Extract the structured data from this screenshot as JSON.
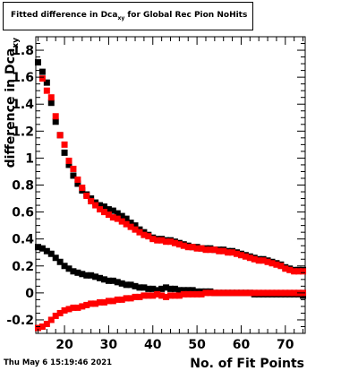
{
  "title": {
    "prefix": "Fitted difference in Dca",
    "subscript": "xy",
    "suffix": " for Global Rec Pion NoHits"
  },
  "timestamp": "Thu May  6 15:19:46 2021",
  "chart_data": {
    "type": "scatter",
    "xlabel": "No. of Fit Points",
    "ylabel": "difference in Dca",
    "ylabel_subscript": "xy",
    "xlim": [
      13.5,
      74.5
    ],
    "ylim": [
      -0.3,
      1.9
    ],
    "x_ticks": [
      20,
      30,
      40,
      50,
      60,
      70
    ],
    "y_ticks": [
      -0.2,
      0,
      0.2,
      0.4,
      0.6,
      0.8,
      1,
      1.2,
      1.4,
      1.6,
      1.8
    ],
    "colors": {
      "black": "#000000",
      "red": "#ff0000"
    },
    "series": [
      {
        "color": "black",
        "marker": "square",
        "points": [
          [
            14,
            1.71
          ],
          [
            15,
            1.64
          ],
          [
            16,
            1.56
          ],
          [
            17,
            1.41
          ],
          [
            18,
            1.27
          ],
          [
            19,
            1.17
          ],
          [
            20,
            1.04
          ],
          [
            21,
            0.95
          ],
          [
            22,
            0.87
          ],
          [
            23,
            0.81
          ],
          [
            24,
            0.76
          ],
          [
            25,
            0.73
          ],
          [
            26,
            0.7
          ],
          [
            27,
            0.67
          ],
          [
            28,
            0.65
          ],
          [
            29,
            0.64
          ],
          [
            30,
            0.62
          ],
          [
            31,
            0.61
          ],
          [
            32,
            0.59
          ],
          [
            33,
            0.57
          ],
          [
            34,
            0.55
          ],
          [
            35,
            0.52
          ],
          [
            36,
            0.5
          ],
          [
            37,
            0.47
          ],
          [
            38,
            0.45
          ],
          [
            39,
            0.43
          ],
          [
            40,
            0.41
          ],
          [
            41,
            0.4
          ],
          [
            42,
            0.4
          ],
          [
            43,
            0.39
          ],
          [
            44,
            0.39
          ],
          [
            45,
            0.38
          ],
          [
            46,
            0.37
          ],
          [
            47,
            0.36
          ],
          [
            48,
            0.35
          ],
          [
            49,
            0.34
          ],
          [
            50,
            0.34
          ],
          [
            51,
            0.33
          ],
          [
            52,
            0.33
          ],
          [
            53,
            0.33
          ],
          [
            54,
            0.32
          ],
          [
            55,
            0.32
          ],
          [
            56,
            0.32
          ],
          [
            57,
            0.31
          ],
          [
            58,
            0.31
          ],
          [
            59,
            0.3
          ],
          [
            60,
            0.29
          ],
          [
            61,
            0.28
          ],
          [
            62,
            0.27
          ],
          [
            63,
            0.26
          ],
          [
            64,
            0.25
          ],
          [
            65,
            0.25
          ],
          [
            66,
            0.24
          ],
          [
            67,
            0.23
          ],
          [
            68,
            0.22
          ],
          [
            69,
            0.21
          ],
          [
            70,
            0.19
          ],
          [
            71,
            0.18
          ],
          [
            72,
            0.17
          ],
          [
            73,
            0.17
          ],
          [
            74,
            0.17
          ]
        ]
      },
      {
        "color": "red",
        "marker": "square",
        "points": [
          [
            15,
            1.59
          ],
          [
            16,
            1.5
          ],
          [
            17,
            1.45
          ],
          [
            18,
            1.31
          ],
          [
            19,
            1.17
          ],
          [
            20,
            1.1
          ],
          [
            21,
            0.98
          ],
          [
            22,
            0.92
          ],
          [
            23,
            0.84
          ],
          [
            24,
            0.78
          ],
          [
            25,
            0.72
          ],
          [
            26,
            0.68
          ],
          [
            27,
            0.65
          ],
          [
            28,
            0.62
          ],
          [
            29,
            0.6
          ],
          [
            30,
            0.58
          ],
          [
            31,
            0.56
          ],
          [
            32,
            0.55
          ],
          [
            33,
            0.53
          ],
          [
            34,
            0.51
          ],
          [
            35,
            0.49
          ],
          [
            36,
            0.47
          ],
          [
            37,
            0.45
          ],
          [
            38,
            0.43
          ],
          [
            39,
            0.42
          ],
          [
            40,
            0.4
          ],
          [
            41,
            0.39
          ],
          [
            42,
            0.39
          ],
          [
            43,
            0.38
          ],
          [
            44,
            0.38
          ],
          [
            45,
            0.37
          ],
          [
            46,
            0.36
          ],
          [
            47,
            0.35
          ],
          [
            48,
            0.34
          ],
          [
            49,
            0.34
          ],
          [
            50,
            0.33
          ],
          [
            51,
            0.33
          ],
          [
            52,
            0.32
          ],
          [
            53,
            0.32
          ],
          [
            54,
            0.32
          ],
          [
            55,
            0.31
          ],
          [
            56,
            0.31
          ],
          [
            57,
            0.3
          ],
          [
            58,
            0.3
          ],
          [
            59,
            0.29
          ],
          [
            60,
            0.28
          ],
          [
            61,
            0.27
          ],
          [
            62,
            0.26
          ],
          [
            63,
            0.25
          ],
          [
            64,
            0.24
          ],
          [
            65,
            0.24
          ],
          [
            66,
            0.23
          ],
          [
            67,
            0.22
          ],
          [
            68,
            0.21
          ],
          [
            69,
            0.2
          ],
          [
            70,
            0.18
          ],
          [
            71,
            0.17
          ],
          [
            72,
            0.16
          ],
          [
            73,
            0.16
          ],
          [
            74,
            0.16
          ]
        ]
      },
      {
        "color": "black",
        "marker": "square",
        "points": [
          [
            14,
            0.34
          ],
          [
            15,
            0.33
          ],
          [
            16,
            0.31
          ],
          [
            17,
            0.29
          ],
          [
            18,
            0.26
          ],
          [
            19,
            0.23
          ],
          [
            20,
            0.2
          ],
          [
            21,
            0.18
          ],
          [
            22,
            0.16
          ],
          [
            23,
            0.15
          ],
          [
            24,
            0.14
          ],
          [
            25,
            0.13
          ],
          [
            26,
            0.13
          ],
          [
            27,
            0.12
          ],
          [
            28,
            0.11
          ],
          [
            29,
            0.1
          ],
          [
            30,
            0.09
          ],
          [
            31,
            0.09
          ],
          [
            32,
            0.08
          ],
          [
            33,
            0.07
          ],
          [
            34,
            0.06
          ],
          [
            35,
            0.06
          ],
          [
            36,
            0.05
          ],
          [
            37,
            0.04
          ],
          [
            38,
            0.04
          ],
          [
            39,
            0.03
          ],
          [
            40,
            0.03
          ],
          [
            41,
            0.02
          ],
          [
            42,
            0.03
          ],
          [
            43,
            0.04
          ],
          [
            44,
            0.03
          ],
          [
            45,
            0.03
          ],
          [
            46,
            0.02
          ],
          [
            47,
            0.02
          ],
          [
            48,
            0.02
          ],
          [
            49,
            0.02
          ],
          [
            50,
            0.01
          ],
          [
            51,
            0.01
          ],
          [
            52,
            0.01
          ],
          [
            53,
            0.01
          ],
          [
            54,
            0.0
          ],
          [
            55,
            0.0
          ],
          [
            56,
            0.0
          ],
          [
            57,
            0.0
          ],
          [
            58,
            0.0
          ],
          [
            59,
            0.0
          ],
          [
            60,
            0.0
          ],
          [
            61,
            0.0
          ],
          [
            62,
            0.0
          ],
          [
            63,
            -0.01
          ],
          [
            64,
            -0.01
          ],
          [
            65,
            -0.01
          ],
          [
            66,
            -0.01
          ],
          [
            67,
            -0.01
          ],
          [
            68,
            -0.01
          ],
          [
            69,
            -0.01
          ],
          [
            70,
            -0.01
          ],
          [
            71,
            -0.01
          ],
          [
            72,
            -0.01
          ],
          [
            73,
            -0.01
          ],
          [
            74,
            -0.02
          ]
        ]
      },
      {
        "color": "red",
        "marker": "square",
        "points": [
          [
            14,
            -0.26
          ],
          [
            15,
            -0.25
          ],
          [
            16,
            -0.23
          ],
          [
            17,
            -0.2
          ],
          [
            18,
            -0.17
          ],
          [
            19,
            -0.15
          ],
          [
            20,
            -0.13
          ],
          [
            21,
            -0.12
          ],
          [
            22,
            -0.11
          ],
          [
            23,
            -0.11
          ],
          [
            24,
            -0.1
          ],
          [
            25,
            -0.09
          ],
          [
            26,
            -0.08
          ],
          [
            27,
            -0.08
          ],
          [
            28,
            -0.07
          ],
          [
            29,
            -0.07
          ],
          [
            30,
            -0.06
          ],
          [
            31,
            -0.06
          ],
          [
            32,
            -0.05
          ],
          [
            33,
            -0.05
          ],
          [
            34,
            -0.04
          ],
          [
            35,
            -0.04
          ],
          [
            36,
            -0.03
          ],
          [
            37,
            -0.03
          ],
          [
            38,
            -0.02
          ],
          [
            39,
            -0.02
          ],
          [
            40,
            -0.02
          ],
          [
            41,
            -0.01
          ],
          [
            42,
            -0.02
          ],
          [
            43,
            -0.03
          ],
          [
            44,
            -0.02
          ],
          [
            45,
            -0.02
          ],
          [
            46,
            -0.02
          ],
          [
            47,
            -0.01
          ],
          [
            48,
            -0.01
          ],
          [
            49,
            -0.01
          ],
          [
            50,
            -0.01
          ],
          [
            51,
            -0.01
          ],
          [
            52,
            0.0
          ],
          [
            53,
            0.0
          ],
          [
            54,
            0.0
          ],
          [
            55,
            0.0
          ],
          [
            56,
            0.0
          ],
          [
            57,
            0.0
          ],
          [
            58,
            0.0
          ],
          [
            59,
            0.0
          ],
          [
            60,
            0.0
          ],
          [
            61,
            0.0
          ],
          [
            62,
            0.0
          ],
          [
            63,
            0.0
          ],
          [
            64,
            0.0
          ],
          [
            65,
            0.0
          ],
          [
            66,
            0.0
          ],
          [
            67,
            0.0
          ],
          [
            68,
            0.0
          ],
          [
            69,
            0.0
          ],
          [
            70,
            0.0
          ],
          [
            71,
            0.0
          ],
          [
            72,
            0.0
          ],
          [
            73,
            0.0
          ],
          [
            74,
            0.0
          ]
        ]
      }
    ]
  }
}
